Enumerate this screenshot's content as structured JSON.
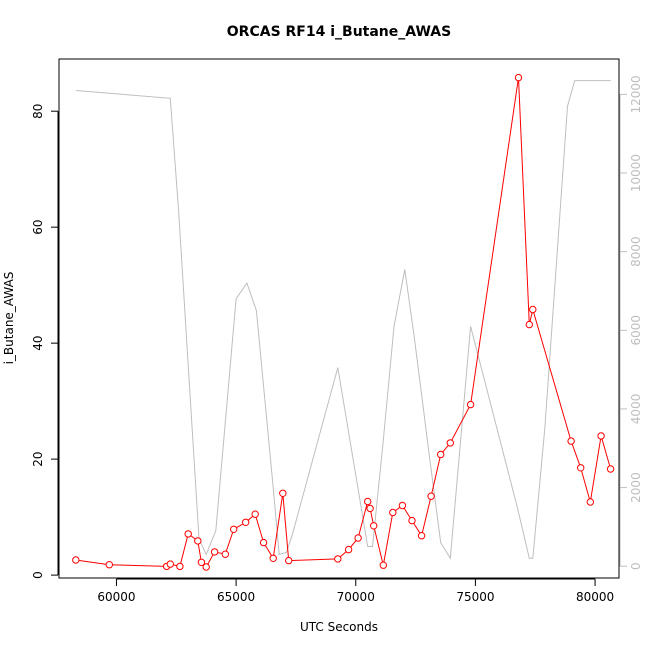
{
  "chart_data": {
    "type": "line",
    "title": "ORCAS RF14 i_Butane_AWAS",
    "xlabel": "UTC Seconds",
    "ylabel": "i_Butane_AWAS",
    "xlim": [
      57600,
      81000
    ],
    "ylim": [
      -0.5,
      89
    ],
    "y2lim": [
      -300,
      12900
    ],
    "x_ticks": [
      60000,
      65000,
      70000,
      75000,
      80000
    ],
    "y_ticks": [
      0,
      20,
      40,
      60,
      80
    ],
    "y2_ticks": [
      0,
      2000,
      4000,
      6000,
      8000,
      10000,
      12000
    ],
    "grid": false,
    "series": [
      {
        "axis": "left",
        "color": "#ff0000",
        "markers": true,
        "points": [
          [
            58300,
            2.6
          ],
          [
            59700,
            1.8
          ],
          [
            62100,
            1.5
          ],
          [
            62250,
            1.9
          ],
          [
            62650,
            1.5
          ],
          [
            63000,
            7.1
          ],
          [
            63400,
            5.9
          ],
          [
            63550,
            2.2
          ],
          [
            63750,
            1.4
          ],
          [
            64100,
            4.0
          ],
          [
            64550,
            3.6
          ],
          [
            64900,
            7.9
          ],
          [
            65400,
            9.1
          ],
          [
            65800,
            10.5
          ],
          [
            66150,
            5.6
          ],
          [
            66550,
            2.9
          ],
          [
            66950,
            14.1
          ],
          [
            67200,
            2.5
          ],
          [
            69250,
            2.8
          ],
          [
            69700,
            4.4
          ],
          [
            70100,
            6.4
          ],
          [
            70500,
            12.7
          ],
          [
            70600,
            11.5
          ],
          [
            70750,
            8.5
          ],
          [
            71150,
            1.7
          ],
          [
            71550,
            10.8
          ],
          [
            71950,
            12.0
          ],
          [
            72350,
            9.4
          ],
          [
            72750,
            6.8
          ],
          [
            73150,
            13.6
          ],
          [
            73550,
            20.8
          ],
          [
            73950,
            22.8
          ],
          [
            74800,
            29.4
          ],
          [
            76800,
            85.8
          ],
          [
            77250,
            43.2
          ],
          [
            77400,
            45.8
          ],
          [
            79000,
            23.1
          ],
          [
            79400,
            18.5
          ],
          [
            79800,
            12.6
          ],
          [
            80250,
            24.0
          ],
          [
            80650,
            18.3
          ]
        ]
      },
      {
        "axis": "right",
        "color": "#bebebe",
        "markers": false,
        "points": [
          [
            58300,
            12100
          ],
          [
            62250,
            11900
          ],
          [
            62600,
            9000
          ],
          [
            63450,
            700
          ],
          [
            63750,
            300
          ],
          [
            64150,
            900
          ],
          [
            65000,
            6800
          ],
          [
            65450,
            7200
          ],
          [
            65850,
            6500
          ],
          [
            66550,
            2000
          ],
          [
            66800,
            300
          ],
          [
            67100,
            350
          ],
          [
            67350,
            800
          ],
          [
            69250,
            5050
          ],
          [
            70500,
            500
          ],
          [
            70700,
            500
          ],
          [
            71150,
            3200
          ],
          [
            71600,
            6100
          ],
          [
            72050,
            7550
          ],
          [
            72450,
            5800
          ],
          [
            73100,
            2700
          ],
          [
            73550,
            600
          ],
          [
            73950,
            200
          ],
          [
            74800,
            6100
          ],
          [
            76750,
            1500
          ],
          [
            77250,
            200
          ],
          [
            77400,
            200
          ],
          [
            77900,
            3500
          ],
          [
            78850,
            11700
          ],
          [
            79150,
            12350
          ],
          [
            80650,
            12350
          ]
        ]
      }
    ]
  }
}
